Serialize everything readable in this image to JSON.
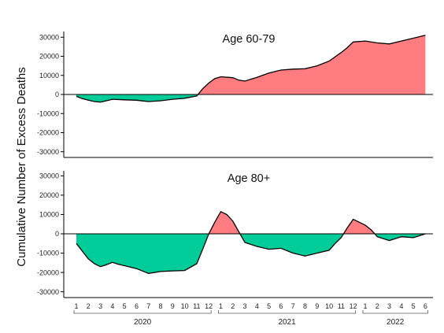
{
  "chart_data": {
    "type": "area",
    "ylabel": "Cumulative Number of Excess Deaths",
    "x": [
      "1",
      "2",
      "3",
      "4",
      "5",
      "6",
      "7",
      "8",
      "9",
      "10",
      "11",
      "12",
      "1",
      "2",
      "3",
      "4",
      "5",
      "6",
      "7",
      "8",
      "9",
      "10",
      "11",
      "12",
      "1",
      "2",
      "3",
      "4",
      "5",
      "6"
    ],
    "year_groups": [
      {
        "label": "2020",
        "from": 0,
        "to": 11
      },
      {
        "label": "2021",
        "from": 12,
        "to": 23
      },
      {
        "label": "2022",
        "from": 24,
        "to": 29
      }
    ],
    "ylim": [
      -33000,
      33000
    ],
    "yticks": [
      30000,
      20000,
      10000,
      0,
      -10000,
      -20000,
      -30000
    ],
    "yticklabels": [
      "30000",
      "20000",
      "10000",
      "0",
      "-10000",
      "-20000",
      "-30000"
    ],
    "positive_color": "#ff7c80",
    "negative_color": "#00cc99",
    "panels": [
      {
        "title": "Age 60-79",
        "points": [
          [
            0,
            -1000
          ],
          [
            0.5,
            -2200
          ],
          [
            1,
            -3000
          ],
          [
            1.5,
            -3700
          ],
          [
            2,
            -4000
          ],
          [
            2.5,
            -3300
          ],
          [
            3,
            -2500
          ],
          [
            4,
            -2800
          ],
          [
            5,
            -3000
          ],
          [
            5.5,
            -3400
          ],
          [
            6,
            -3700
          ],
          [
            7,
            -3300
          ],
          [
            8,
            -2500
          ],
          [
            9,
            -2000
          ],
          [
            10,
            -800
          ],
          [
            10.5,
            3000
          ],
          [
            11,
            6000
          ],
          [
            11.5,
            8300
          ],
          [
            12,
            9300
          ],
          [
            13,
            8800
          ],
          [
            13.5,
            7500
          ],
          [
            14,
            7000
          ],
          [
            15,
            9000
          ],
          [
            16,
            11200
          ],
          [
            17,
            12800
          ],
          [
            18,
            13300
          ],
          [
            19,
            13500
          ],
          [
            20,
            15000
          ],
          [
            21,
            17500
          ],
          [
            22,
            22000
          ],
          [
            22.5,
            24500
          ],
          [
            23,
            27500
          ],
          [
            24,
            28000
          ],
          [
            25,
            27000
          ],
          [
            26,
            26500
          ],
          [
            27,
            28000
          ],
          [
            28,
            29500
          ],
          [
            29,
            31000
          ]
        ]
      },
      {
        "title": "Age 80+",
        "points": [
          [
            0,
            -5000
          ],
          [
            0.5,
            -9000
          ],
          [
            1,
            -13000
          ],
          [
            1.5,
            -15500
          ],
          [
            2,
            -17000
          ],
          [
            2.5,
            -16000
          ],
          [
            3,
            -14800
          ],
          [
            3.5,
            -15800
          ],
          [
            4,
            -16500
          ],
          [
            5,
            -18000
          ],
          [
            6,
            -20500
          ],
          [
            7,
            -19500
          ],
          [
            8,
            -19200
          ],
          [
            9,
            -19000
          ],
          [
            10,
            -15500
          ],
          [
            10.5,
            -8000
          ],
          [
            11,
            0
          ],
          [
            11.5,
            6000
          ],
          [
            12,
            11500
          ],
          [
            12.5,
            10000
          ],
          [
            13,
            6500
          ],
          [
            13.5,
            1000
          ],
          [
            14,
            -4500
          ],
          [
            15,
            -6500
          ],
          [
            16,
            -8000
          ],
          [
            17,
            -7500
          ],
          [
            18,
            -10000
          ],
          [
            19,
            -11500
          ],
          [
            20,
            -10000
          ],
          [
            21,
            -8500
          ],
          [
            21.5,
            -5000
          ],
          [
            22,
            -2000
          ],
          [
            22.5,
            3000
          ],
          [
            23,
            7500
          ],
          [
            24,
            4500
          ],
          [
            24.5,
            2000
          ],
          [
            25,
            -1500
          ],
          [
            26,
            -3500
          ],
          [
            27,
            -1500
          ],
          [
            28,
            -2000
          ],
          [
            29,
            0
          ]
        ]
      }
    ]
  }
}
